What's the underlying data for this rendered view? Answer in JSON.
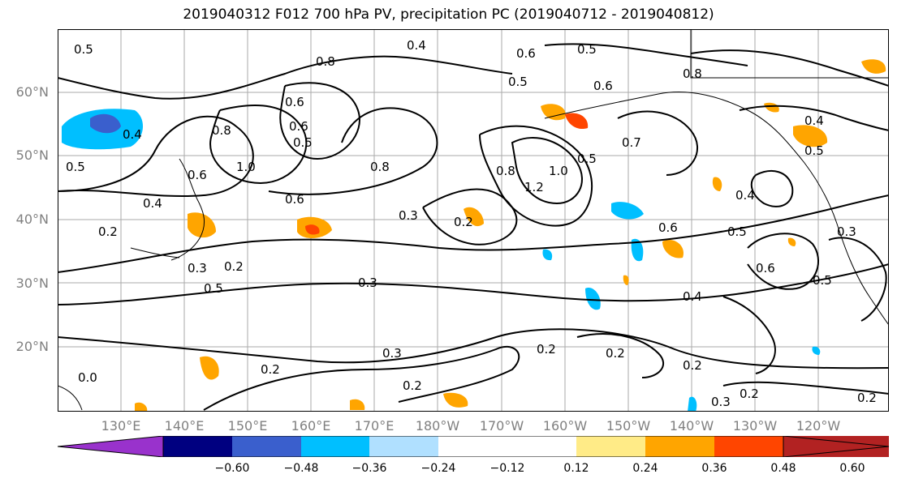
{
  "title": "2019040312 F012 700 hPa PV, precipitation PC (2019040712 - 2019040812)",
  "lat_labels": [
    "60°N",
    "50°N",
    "40°N",
    "30°N",
    "20°N"
  ],
  "lon_labels": [
    "130°E",
    "140°E",
    "150°E",
    "160°E",
    "170°E",
    "180°W",
    "170°W",
    "160°W",
    "150°W",
    "140°W",
    "130°W",
    "120°W"
  ],
  "contour_labels": [
    "0.5",
    "0.4",
    "0.8",
    "0.6",
    "0.5",
    "0.5",
    "0.6",
    "0.8",
    "0.4",
    "0.8",
    "0.6",
    "0.6",
    "0.5",
    "0.4",
    "0.5",
    "0.6",
    "1.0",
    "0.6",
    "0.8",
    "0.3",
    "0.2",
    "0.8",
    "1.2",
    "1.0",
    "0.5",
    "0.7",
    "0.6",
    "0.4",
    "0.5",
    "0.4",
    "0.5",
    "0.2",
    "0.3",
    "0.2",
    "0.5",
    "0.3",
    "0.6",
    "0.3",
    "0.4",
    "0.5",
    "0.3",
    "0.2",
    "0.2",
    "0.2",
    "0.2",
    "0.3",
    "0.2",
    "0.2",
    "0.2",
    "0.0"
  ],
  "colorbar": {
    "colors": [
      "#9932cc",
      "#000080",
      "#3a5fcd",
      "#00bfff",
      "#b0e0ff",
      "#ffffff",
      "#ffffff",
      "#ffeb87",
      "#ffa500",
      "#ff4500",
      "#b22222",
      "#ff82ab"
    ],
    "tick_labels": [
      "-0.60",
      "-0.48",
      "-0.36",
      "-0.24",
      "-0.12",
      "0.12",
      "0.24",
      "0.36",
      "0.48",
      "0.60"
    ]
  },
  "legend_colors": {
    "contour": "#000000",
    "grid": "#aaaaaa",
    "coast": "#000000"
  }
}
